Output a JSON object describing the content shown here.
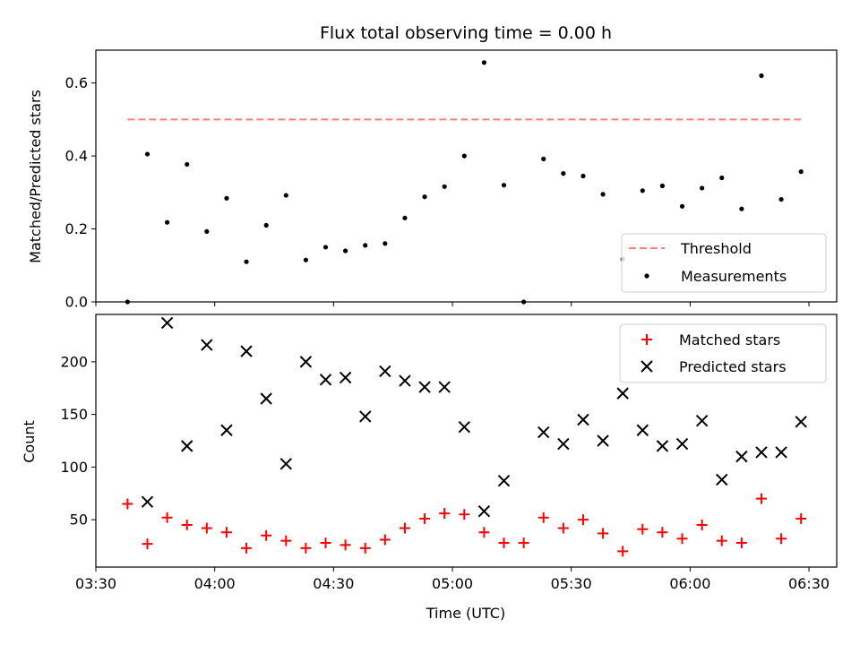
{
  "chart_data": {
    "title": "Flux total observing time = 0.00 h",
    "xlabel": "Time (UTC)",
    "x_tick_labels": [
      "03:30",
      "04:00",
      "04:30",
      "05:00",
      "05:30",
      "06:00",
      "06:30"
    ],
    "x_tick_minutes": [
      210,
      240,
      270,
      300,
      330,
      360,
      390
    ],
    "xlim_minutes": [
      210,
      397
    ],
    "top": {
      "type": "scatter",
      "ylabel": "Matched/Predicted stars",
      "ylim": [
        0,
        0.69
      ],
      "y_ticks": [
        0.0,
        0.2,
        0.4,
        0.6
      ],
      "y_tick_labels": [
        "0.0",
        "0.2",
        "0.4",
        "0.6"
      ],
      "legend_position": "lower right",
      "threshold": {
        "name": "Threshold",
        "value": 0.5,
        "color": "#ff7f7f",
        "x_start": 218,
        "x_end": 388
      },
      "measurements": {
        "name": "Measurements",
        "color": "#000000",
        "x": [
          218,
          223,
          228,
          233,
          238,
          243,
          248,
          253,
          258,
          263,
          268,
          273,
          278,
          283,
          288,
          293,
          298,
          303,
          308,
          313,
          318,
          323,
          328,
          333,
          338,
          343,
          348,
          353,
          358,
          363,
          368,
          373,
          378,
          383,
          388
        ],
        "y": [
          0.0,
          0.405,
          0.218,
          0.377,
          0.193,
          0.284,
          0.11,
          0.21,
          0.292,
          0.115,
          0.15,
          0.14,
          0.155,
          0.16,
          0.23,
          0.288,
          0.316,
          0.4,
          0.656,
          0.32,
          0.0,
          0.392,
          0.352,
          0.345,
          0.295,
          0.117,
          0.305,
          0.318,
          0.262,
          0.312,
          0.34,
          0.255,
          0.62,
          0.281,
          0.357
        ]
      }
    },
    "bottom": {
      "type": "scatter",
      "ylabel": "Count",
      "ylim": [
        5,
        245
      ],
      "y_ticks": [
        50,
        100,
        150,
        200
      ],
      "y_tick_labels": [
        "50",
        "100",
        "150",
        "200"
      ],
      "legend_position": "upper right",
      "series": [
        {
          "name": "Matched stars",
          "color": "#ff0000",
          "marker": "plus",
          "x": [
            218,
            223,
            228,
            233,
            238,
            243,
            248,
            253,
            258,
            263,
            268,
            273,
            278,
            283,
            288,
            293,
            298,
            303,
            308,
            313,
            318,
            323,
            328,
            333,
            338,
            343,
            348,
            353,
            358,
            363,
            368,
            373,
            378,
            383,
            388
          ],
          "y": [
            65,
            27,
            52,
            45,
            42,
            38,
            23,
            35,
            30,
            23,
            28,
            26,
            23,
            31,
            42,
            51,
            56,
            55,
            38,
            28,
            28,
            52,
            42,
            50,
            37,
            20,
            41,
            38,
            32,
            45,
            30,
            28,
            70,
            32,
            51
          ]
        },
        {
          "name": "Predicted stars",
          "color": "#000000",
          "marker": "x",
          "x": [
            223,
            228,
            233,
            238,
            243,
            248,
            253,
            258,
            263,
            268,
            273,
            278,
            283,
            288,
            293,
            298,
            303,
            308,
            313,
            323,
            328,
            333,
            338,
            343,
            348,
            353,
            358,
            363,
            368,
            373,
            378,
            383,
            388
          ],
          "y": [
            67,
            237,
            120,
            216,
            135,
            210,
            165,
            103,
            200,
            183,
            185,
            148,
            191,
            182,
            176,
            176,
            138,
            58,
            87,
            133,
            122,
            145,
            125,
            170,
            135,
            120,
            122,
            144,
            88,
            110,
            114,
            114,
            143
          ]
        }
      ]
    }
  }
}
